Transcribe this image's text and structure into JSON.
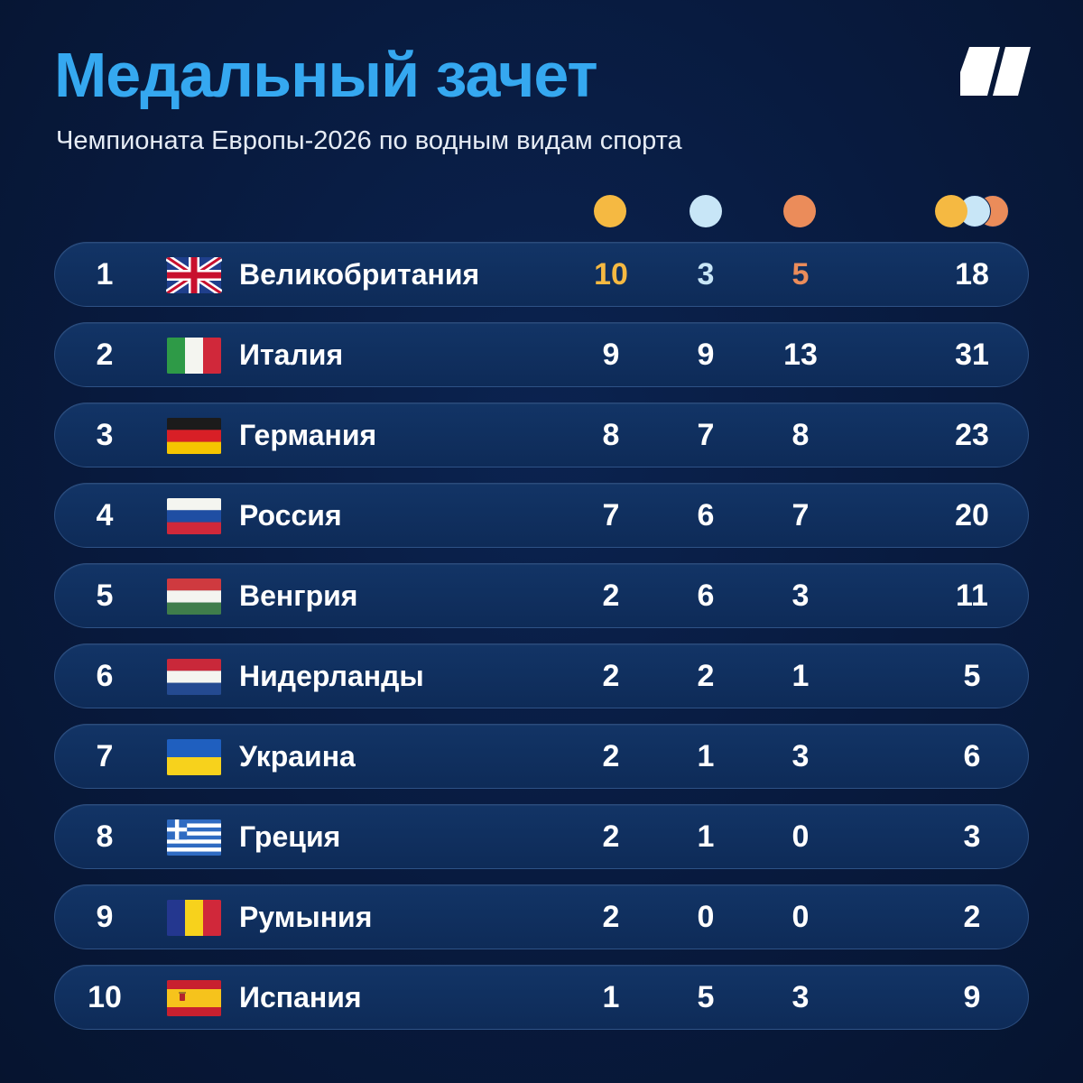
{
  "header": {
    "title": "Медальный зачет",
    "subtitle": "Чемпионата Европы-2026 по водным видам спорта",
    "logo_icon": "brand-logo-icon"
  },
  "columns": {
    "gold_icon": "gold-medal-icon",
    "silver_icon": "silver-medal-icon",
    "bronze_icon": "bronze-medal-icon",
    "total_icon": "all-medals-icon"
  },
  "colors": {
    "accent": "#35a8f0",
    "gold": "#f5b942",
    "silver": "#c8e6f7",
    "bronze": "#eb8c5a",
    "row_background": "#0f2d5c"
  },
  "rows": [
    {
      "rank": "1",
      "country": "Великобритания",
      "flag": "flag-gb-icon",
      "gold": "10",
      "silver": "3",
      "bronze": "5",
      "total": "18"
    },
    {
      "rank": "2",
      "country": "Италия",
      "flag": "flag-it-icon",
      "gold": "9",
      "silver": "9",
      "bronze": "13",
      "total": "31"
    },
    {
      "rank": "3",
      "country": "Германия",
      "flag": "flag-de-icon",
      "gold": "8",
      "silver": "7",
      "bronze": "8",
      "total": "23"
    },
    {
      "rank": "4",
      "country": "Россия",
      "flag": "flag-ru-icon",
      "gold": "7",
      "silver": "6",
      "bronze": "7",
      "total": "20"
    },
    {
      "rank": "5",
      "country": "Венгрия",
      "flag": "flag-hu-icon",
      "gold": "2",
      "silver": "6",
      "bronze": "3",
      "total": "11"
    },
    {
      "rank": "6",
      "country": "Нидерланды",
      "flag": "flag-nl-icon",
      "gold": "2",
      "silver": "2",
      "bronze": "1",
      "total": "5"
    },
    {
      "rank": "7",
      "country": "Украина",
      "flag": "flag-ua-icon",
      "gold": "2",
      "silver": "1",
      "bronze": "3",
      "total": "6"
    },
    {
      "rank": "8",
      "country": "Греция",
      "flag": "flag-gr-icon",
      "gold": "2",
      "silver": "1",
      "bronze": "0",
      "total": "3"
    },
    {
      "rank": "9",
      "country": "Румыния",
      "flag": "flag-ro-icon",
      "gold": "2",
      "silver": "0",
      "bronze": "0",
      "total": "2"
    },
    {
      "rank": "10",
      "country": "Испания",
      "flag": "flag-es-icon",
      "gold": "1",
      "silver": "5",
      "bronze": "3",
      "total": "9"
    }
  ]
}
